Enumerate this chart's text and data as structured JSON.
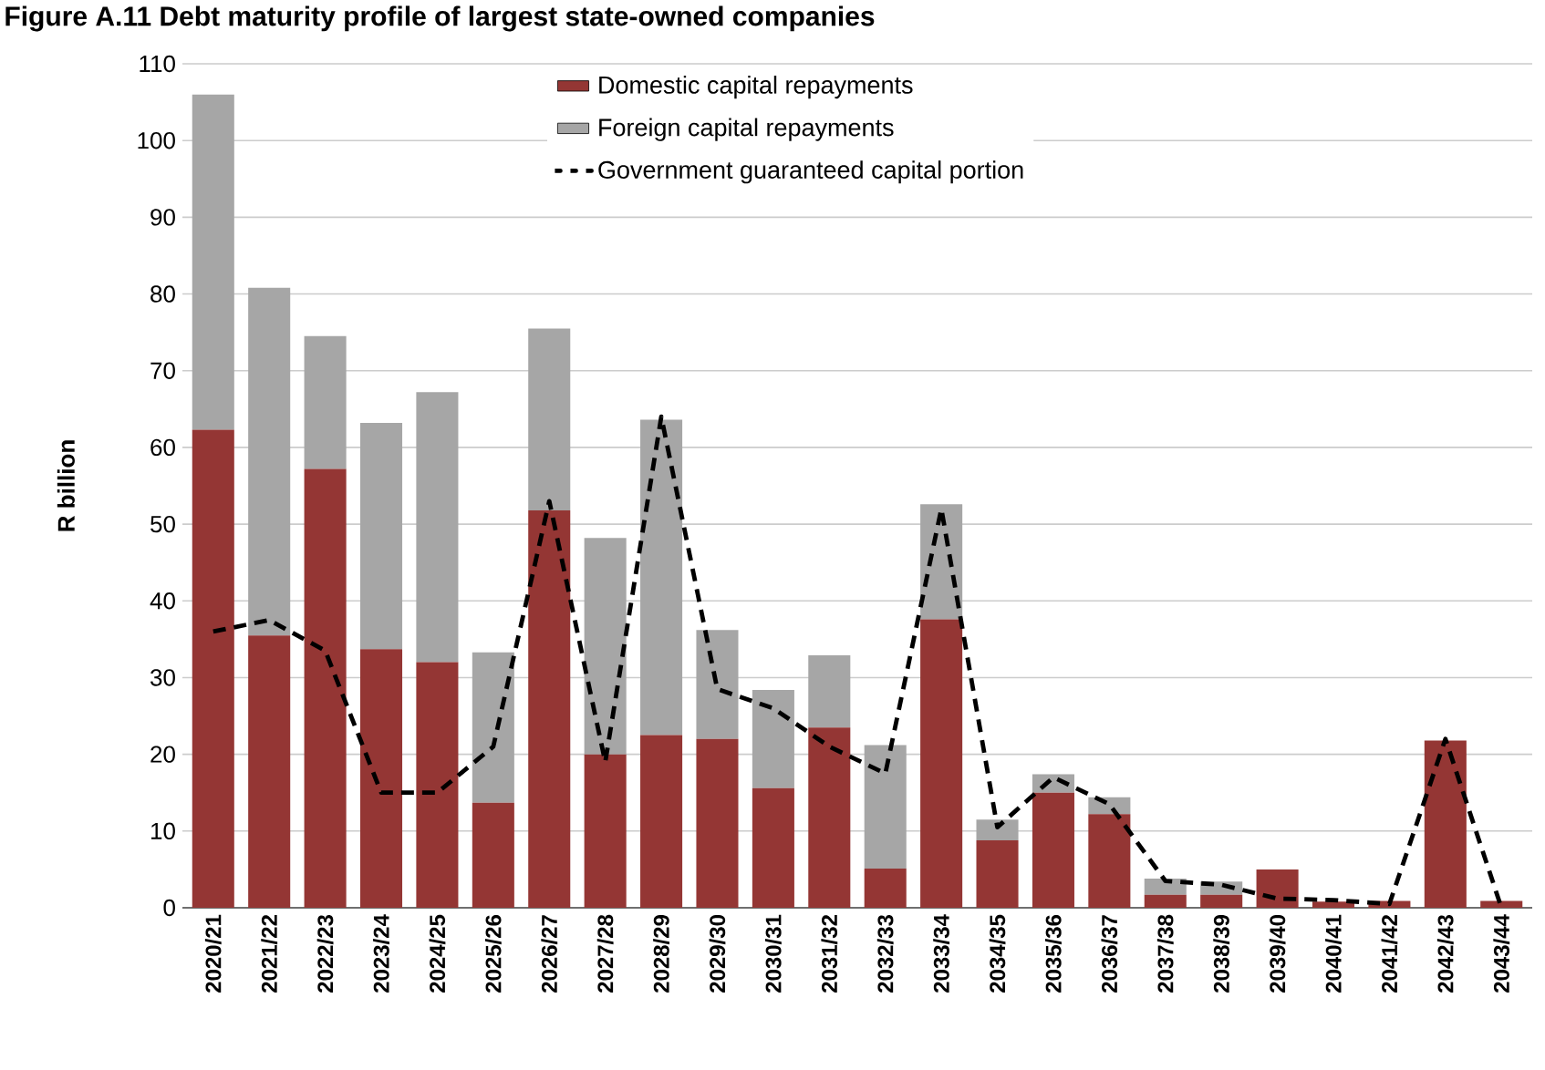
{
  "chart_data": {
    "type": "bar",
    "title": "Figure A.11 Debt maturity profile of largest state-owned companies",
    "ylabel": "R billion",
    "categories": [
      "2020/21",
      "2021/22",
      "2022/23",
      "2023/24",
      "2024/25",
      "2025/26",
      "2026/27",
      "2027/28",
      "2028/29",
      "2029/30",
      "2030/31",
      "2031/32",
      "2032/33",
      "2033/34",
      "2034/35",
      "2035/36",
      "2036/37",
      "2037/38",
      "2038/39",
      "2039/40",
      "2040/41",
      "2041/42",
      "2042/43",
      "2043/44"
    ],
    "stacked": true,
    "series": [
      {
        "name": "Domestic capital repayments",
        "color": "#943634",
        "values": [
          62.3,
          35.5,
          57.2,
          33.7,
          32.0,
          13.7,
          51.8,
          20.0,
          22.5,
          22.0,
          15.6,
          23.5,
          5.1,
          37.6,
          8.8,
          15.0,
          12.2,
          1.7,
          1.7,
          5.0,
          0.8,
          0.9,
          21.8,
          0.9
        ]
      },
      {
        "name": "Foreign capital repayments",
        "color": "#a6a6a6",
        "values": [
          43.7,
          45.3,
          17.3,
          29.5,
          35.2,
          19.6,
          23.7,
          28.2,
          41.1,
          14.2,
          12.8,
          9.4,
          16.1,
          15.0,
          2.7,
          2.4,
          2.2,
          2.1,
          1.7,
          null,
          null,
          null,
          null,
          null
        ]
      },
      {
        "name": "Government guaranteed capital portion",
        "type": "line",
        "color": "#000000",
        "line_style": "dashed",
        "marker": "none",
        "values": [
          36,
          37.5,
          33.5,
          15,
          15,
          21,
          53,
          19,
          64,
          28.5,
          26,
          21,
          17.5,
          52,
          10.5,
          17,
          13.5,
          3.5,
          3,
          1.2,
          1,
          0.5,
          22,
          0
        ]
      }
    ],
    "ylim": [
      0,
      110
    ],
    "yticks": [
      0,
      10,
      20,
      30,
      40,
      50,
      60,
      70,
      80,
      90,
      100,
      110
    ],
    "grid": "y",
    "legend": "top"
  }
}
